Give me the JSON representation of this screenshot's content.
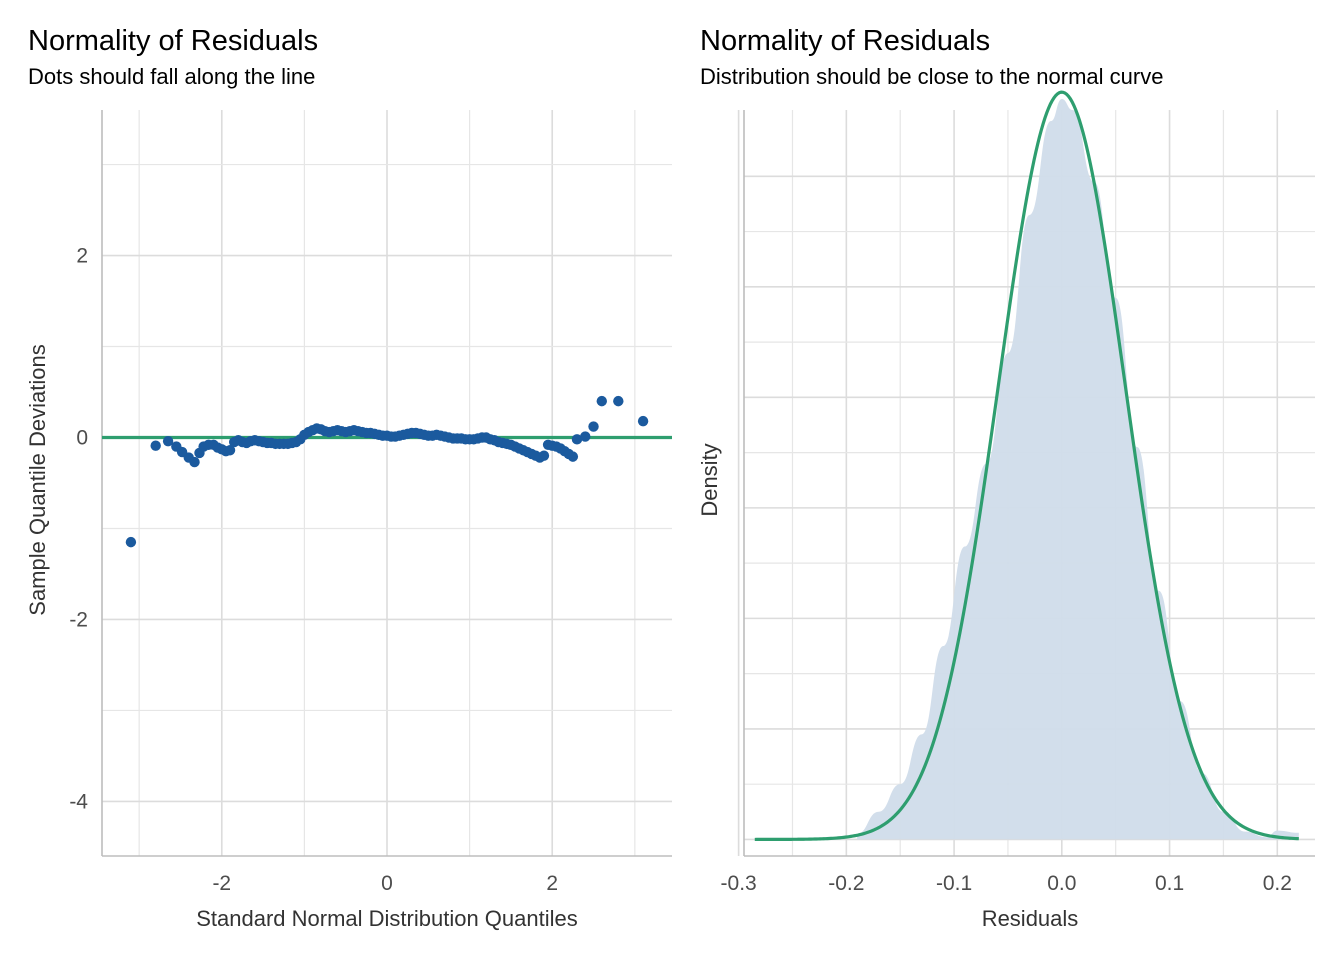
{
  "colors": {
    "point": "#1b5a9e",
    "reference_line": "#2e9e6f",
    "density_fill": "#d0dcea",
    "normal_curve": "#2e9e6f"
  },
  "chart_data": [
    {
      "type": "scatter",
      "title": "Normality of Residuals",
      "subtitle": "Dots should fall along the line",
      "xlabel": "Standard Normal Distribution Quantiles",
      "ylabel": "Sample Quantile Deviations",
      "xlim": [
        -3.45,
        3.45
      ],
      "ylim": [
        -4.6,
        3.6
      ],
      "x_ticks": [
        -2,
        0,
        2
      ],
      "y_ticks": [
        -4,
        -2,
        0,
        2
      ],
      "x_tick_labels": [
        "-2",
        "0",
        "2"
      ],
      "y_tick_labels": [
        "-4",
        "-2",
        "0",
        "2"
      ],
      "grid": true,
      "reference_line": {
        "y": 0
      },
      "points": [
        [
          -3.1,
          -1.15
        ],
        [
          -2.8,
          -0.09
        ],
        [
          -2.65,
          -0.04
        ],
        [
          -2.55,
          -0.1
        ],
        [
          -2.48,
          -0.16
        ],
        [
          -2.4,
          -0.22
        ],
        [
          -2.33,
          -0.27
        ],
        [
          -2.27,
          -0.17
        ],
        [
          -2.22,
          -0.1
        ],
        [
          -2.16,
          -0.08
        ],
        [
          -2.1,
          -0.08
        ],
        [
          -2.05,
          -0.11
        ],
        [
          -2.0,
          -0.13
        ],
        [
          -1.95,
          -0.15
        ],
        [
          -1.9,
          -0.14
        ],
        [
          -1.85,
          -0.05
        ],
        [
          -1.8,
          -0.03
        ],
        [
          -1.75,
          -0.05
        ],
        [
          -1.7,
          -0.06
        ],
        [
          -1.65,
          -0.04
        ],
        [
          -1.6,
          -0.03
        ],
        [
          -1.55,
          -0.04
        ],
        [
          -1.5,
          -0.05
        ],
        [
          -1.45,
          -0.06
        ],
        [
          -1.4,
          -0.06
        ],
        [
          -1.35,
          -0.07
        ],
        [
          -1.3,
          -0.07
        ],
        [
          -1.25,
          -0.07
        ],
        [
          -1.2,
          -0.07
        ],
        [
          -1.15,
          -0.06
        ],
        [
          -1.1,
          -0.05
        ],
        [
          -1.05,
          -0.02
        ],
        [
          -1.0,
          0.03
        ],
        [
          -0.95,
          0.06
        ],
        [
          -0.9,
          0.08
        ],
        [
          -0.85,
          0.1
        ],
        [
          -0.8,
          0.09
        ],
        [
          -0.75,
          0.07
        ],
        [
          -0.7,
          0.06
        ],
        [
          -0.65,
          0.07
        ],
        [
          -0.6,
          0.08
        ],
        [
          -0.55,
          0.07
        ],
        [
          -0.5,
          0.06
        ],
        [
          -0.45,
          0.07
        ],
        [
          -0.4,
          0.08
        ],
        [
          -0.35,
          0.07
        ],
        [
          -0.3,
          0.06
        ],
        [
          -0.25,
          0.05
        ],
        [
          -0.2,
          0.05
        ],
        [
          -0.15,
          0.04
        ],
        [
          -0.1,
          0.03
        ],
        [
          -0.05,
          0.02
        ],
        [
          0.0,
          0.02
        ],
        [
          0.05,
          0.01
        ],
        [
          0.1,
          0.01
        ],
        [
          0.15,
          0.02
        ],
        [
          0.2,
          0.03
        ],
        [
          0.25,
          0.04
        ],
        [
          0.3,
          0.05
        ],
        [
          0.35,
          0.05
        ],
        [
          0.4,
          0.04
        ],
        [
          0.45,
          0.03
        ],
        [
          0.5,
          0.02
        ],
        [
          0.55,
          0.02
        ],
        [
          0.6,
          0.03
        ],
        [
          0.65,
          0.02
        ],
        [
          0.7,
          0.01
        ],
        [
          0.75,
          0.0
        ],
        [
          0.8,
          -0.01
        ],
        [
          0.85,
          -0.01
        ],
        [
          0.9,
          -0.01
        ],
        [
          0.95,
          -0.02
        ],
        [
          1.0,
          -0.02
        ],
        [
          1.05,
          -0.02
        ],
        [
          1.1,
          -0.01
        ],
        [
          1.15,
          0.0
        ],
        [
          1.2,
          0.0
        ],
        [
          1.25,
          -0.02
        ],
        [
          1.3,
          -0.03
        ],
        [
          1.35,
          -0.05
        ],
        [
          1.4,
          -0.06
        ],
        [
          1.45,
          -0.07
        ],
        [
          1.5,
          -0.08
        ],
        [
          1.55,
          -0.1
        ],
        [
          1.6,
          -0.12
        ],
        [
          1.65,
          -0.14
        ],
        [
          1.7,
          -0.16
        ],
        [
          1.75,
          -0.18
        ],
        [
          1.8,
          -0.2
        ],
        [
          1.85,
          -0.22
        ],
        [
          1.9,
          -0.2
        ],
        [
          1.95,
          -0.08
        ],
        [
          2.0,
          -0.09
        ],
        [
          2.05,
          -0.1
        ],
        [
          2.1,
          -0.12
        ],
        [
          2.15,
          -0.15
        ],
        [
          2.2,
          -0.18
        ],
        [
          2.25,
          -0.21
        ],
        [
          2.3,
          -0.02
        ],
        [
          2.4,
          0.01
        ],
        [
          2.5,
          0.12
        ],
        [
          2.6,
          0.4
        ],
        [
          2.8,
          0.4
        ],
        [
          3.1,
          0.18
        ]
      ]
    },
    {
      "type": "area",
      "title": "Normality of Residuals",
      "subtitle": "Distribution should be close to the normal curve",
      "xlabel": "Residuals",
      "ylabel": "Density",
      "xlim": [
        -0.295,
        0.235
      ],
      "ylim": [
        -0.15,
        6.6
      ],
      "x_ticks": [
        -0.3,
        -0.2,
        -0.1,
        0.0,
        0.1,
        0.2
      ],
      "x_tick_labels": [
        "-0.3",
        "-0.2",
        "-0.1",
        "0.0",
        "0.1",
        "0.2"
      ],
      "y_ticks_hidden": true,
      "grid": true,
      "normal_curve": {
        "mean": 0.0,
        "sd": 0.059
      },
      "density": {
        "x": [
          -0.19,
          -0.17,
          -0.15,
          -0.13,
          -0.11,
          -0.09,
          -0.07,
          -0.05,
          -0.03,
          -0.01,
          0.0,
          0.01,
          0.03,
          0.05,
          0.07,
          0.09,
          0.11,
          0.13,
          0.15,
          0.17,
          0.19,
          0.2,
          0.22
        ],
        "y": [
          0.05,
          0.25,
          0.5,
          0.95,
          1.75,
          2.65,
          3.4,
          4.4,
          5.65,
          6.5,
          6.7,
          6.6,
          5.95,
          4.9,
          3.55,
          2.25,
          1.25,
          0.6,
          0.25,
          0.07,
          0.02,
          0.08,
          0.06
        ]
      }
    }
  ]
}
